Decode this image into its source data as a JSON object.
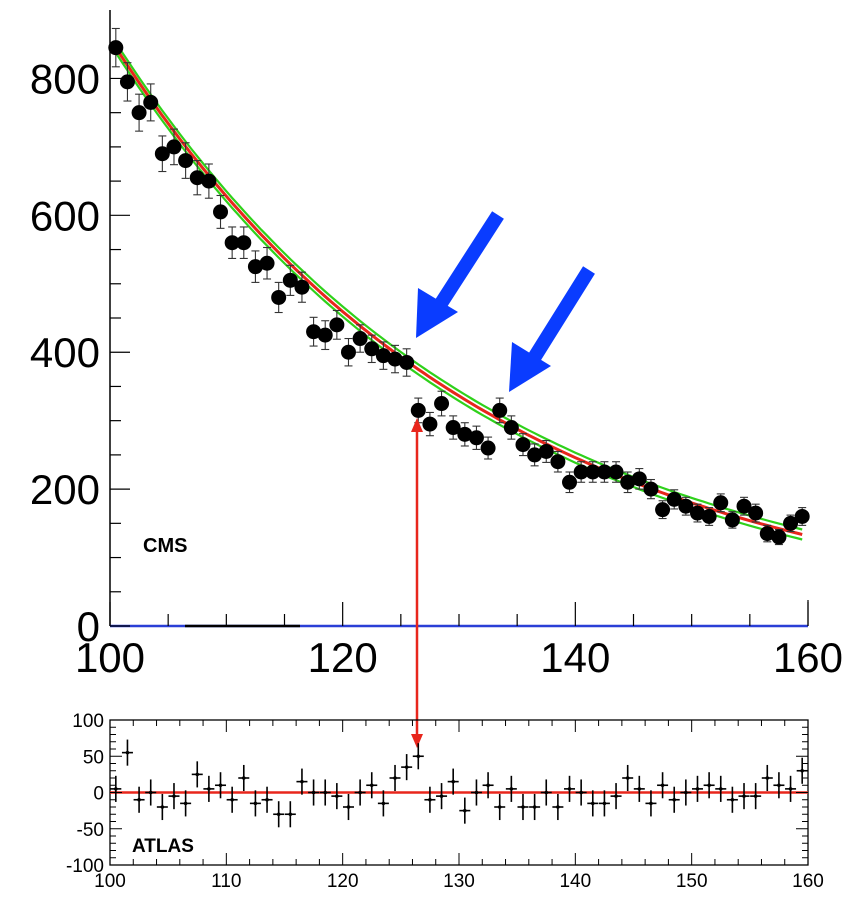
{
  "chart_data": [
    {
      "type": "scatter",
      "label": "CMS",
      "xlim": [
        100,
        160
      ],
      "ylim": [
        0,
        900
      ],
      "x_ticks": [
        "100",
        "120",
        "140",
        "160"
      ],
      "y_ticks": [
        "0",
        "200",
        "400",
        "600",
        "800"
      ],
      "series": [
        {
          "x": [
            100.5,
            101.5,
            102.5,
            103.5,
            104.5,
            105.5,
            106.5,
            107.5,
            108.5,
            109.5,
            110.5,
            111.5,
            112.5,
            113.5,
            114.5,
            115.5,
            116.5,
            117.5,
            118.5,
            119.5,
            120.5,
            121.5,
            122.5,
            123.5,
            124.5,
            125.5,
            126.5,
            127.5,
            128.5,
            129.5,
            130.5,
            131.5,
            132.5,
            133.5,
            134.5,
            135.5,
            136.5,
            137.5,
            138.5,
            139.5,
            140.5,
            141.5,
            142.5,
            143.5,
            144.5,
            145.5,
            146.5,
            147.5,
            148.5,
            149.5,
            150.5,
            151.5,
            152.5,
            153.5,
            154.5,
            155.5,
            156.5,
            157.5,
            158.5,
            159.5
          ],
          "y": [
            845,
            795,
            750,
            765,
            690,
            700,
            680,
            655,
            650,
            605,
            560,
            560,
            525,
            530,
            480,
            505,
            495,
            430,
            425,
            440,
            400,
            420,
            405,
            395,
            390,
            385,
            315,
            295,
            325,
            290,
            280,
            275,
            260,
            315,
            290,
            265,
            250,
            255,
            240,
            210,
            225,
            225,
            225,
            225,
            210,
            215,
            200,
            170,
            185,
            175,
            165,
            160,
            180,
            155,
            175,
            165,
            135,
            130,
            150,
            160
          ],
          "yerr": [
            28,
            28,
            27,
            27,
            26,
            26,
            26,
            25,
            25,
            24,
            23,
            23,
            23,
            23,
            22,
            22,
            22,
            21,
            21,
            21,
            20,
            20,
            20,
            20,
            20,
            20,
            18,
            17,
            18,
            17,
            17,
            17,
            16,
            18,
            17,
            16,
            16,
            16,
            15,
            15,
            15,
            15,
            15,
            15,
            15,
            15,
            14,
            13,
            14,
            13,
            13,
            13,
            13,
            12,
            13,
            13,
            12,
            11,
            12,
            13
          ]
        }
      ],
      "fit_curves": [
        "red",
        "green"
      ],
      "annotation_arrows": "blue"
    },
    {
      "type": "scatter",
      "label": "ATLAS",
      "xlim": [
        100,
        160
      ],
      "ylim": [
        -100,
        100
      ],
      "x_ticks": [
        "100",
        "110",
        "120",
        "130",
        "140",
        "150",
        "160"
      ],
      "y_ticks": [
        "100",
        "50",
        "0",
        "-50",
        "-100"
      ],
      "series": [
        {
          "x": [
            100.5,
            101.5,
            102.5,
            103.5,
            104.5,
            105.5,
            106.5,
            107.5,
            108.5,
            109.5,
            110.5,
            111.5,
            112.5,
            113.5,
            114.5,
            115.5,
            116.5,
            117.5,
            118.5,
            119.5,
            120.5,
            121.5,
            122.5,
            123.5,
            124.5,
            125.5,
            126.5,
            127.5,
            128.5,
            129.5,
            130.5,
            131.5,
            132.5,
            133.5,
            134.5,
            135.5,
            136.5,
            137.5,
            138.5,
            139.5,
            140.5,
            141.5,
            142.5,
            143.5,
            144.5,
            145.5,
            146.5,
            147.5,
            148.5,
            149.5,
            150.5,
            151.5,
            152.5,
            153.5,
            154.5,
            155.5,
            156.5,
            157.5,
            158.5,
            159.5
          ],
          "y": [
            5,
            55,
            -10,
            0,
            -20,
            -5,
            -15,
            25,
            5,
            10,
            -10,
            20,
            -15,
            -10,
            -30,
            -30,
            15,
            0,
            0,
            -5,
            -20,
            0,
            10,
            -15,
            20,
            35,
            50,
            -10,
            -5,
            15,
            -25,
            0,
            10,
            -20,
            5,
            -20,
            -20,
            0,
            -20,
            5,
            0,
            -15,
            -15,
            -5,
            20,
            5,
            -15,
            10,
            -10,
            0,
            5,
            10,
            5,
            -10,
            -5,
            -5,
            20,
            10,
            5,
            30
          ],
          "yerr": [
            18,
            18,
            18,
            18,
            18,
            18,
            18,
            18,
            18,
            18,
            18,
            18,
            18,
            18,
            18,
            18,
            18,
            18,
            18,
            18,
            18,
            18,
            18,
            18,
            18,
            18,
            18,
            18,
            18,
            18,
            18,
            18,
            18,
            18,
            18,
            18,
            18,
            18,
            18,
            18,
            18,
            18,
            18,
            18,
            18,
            18,
            18,
            18,
            18,
            18,
            18,
            18,
            18,
            18,
            18,
            18,
            18,
            18,
            18,
            18
          ]
        }
      ],
      "reference_line": {
        "y": 0,
        "color": "red"
      }
    }
  ],
  "colors": {
    "axis": "#000000",
    "points": "#000000",
    "fit_red": "#e8261c",
    "fit_green": "#2fd11b",
    "baseline": "#2a3fd6",
    "blue_arrow": "#0a3cff",
    "red_arrow": "#e8261c"
  }
}
